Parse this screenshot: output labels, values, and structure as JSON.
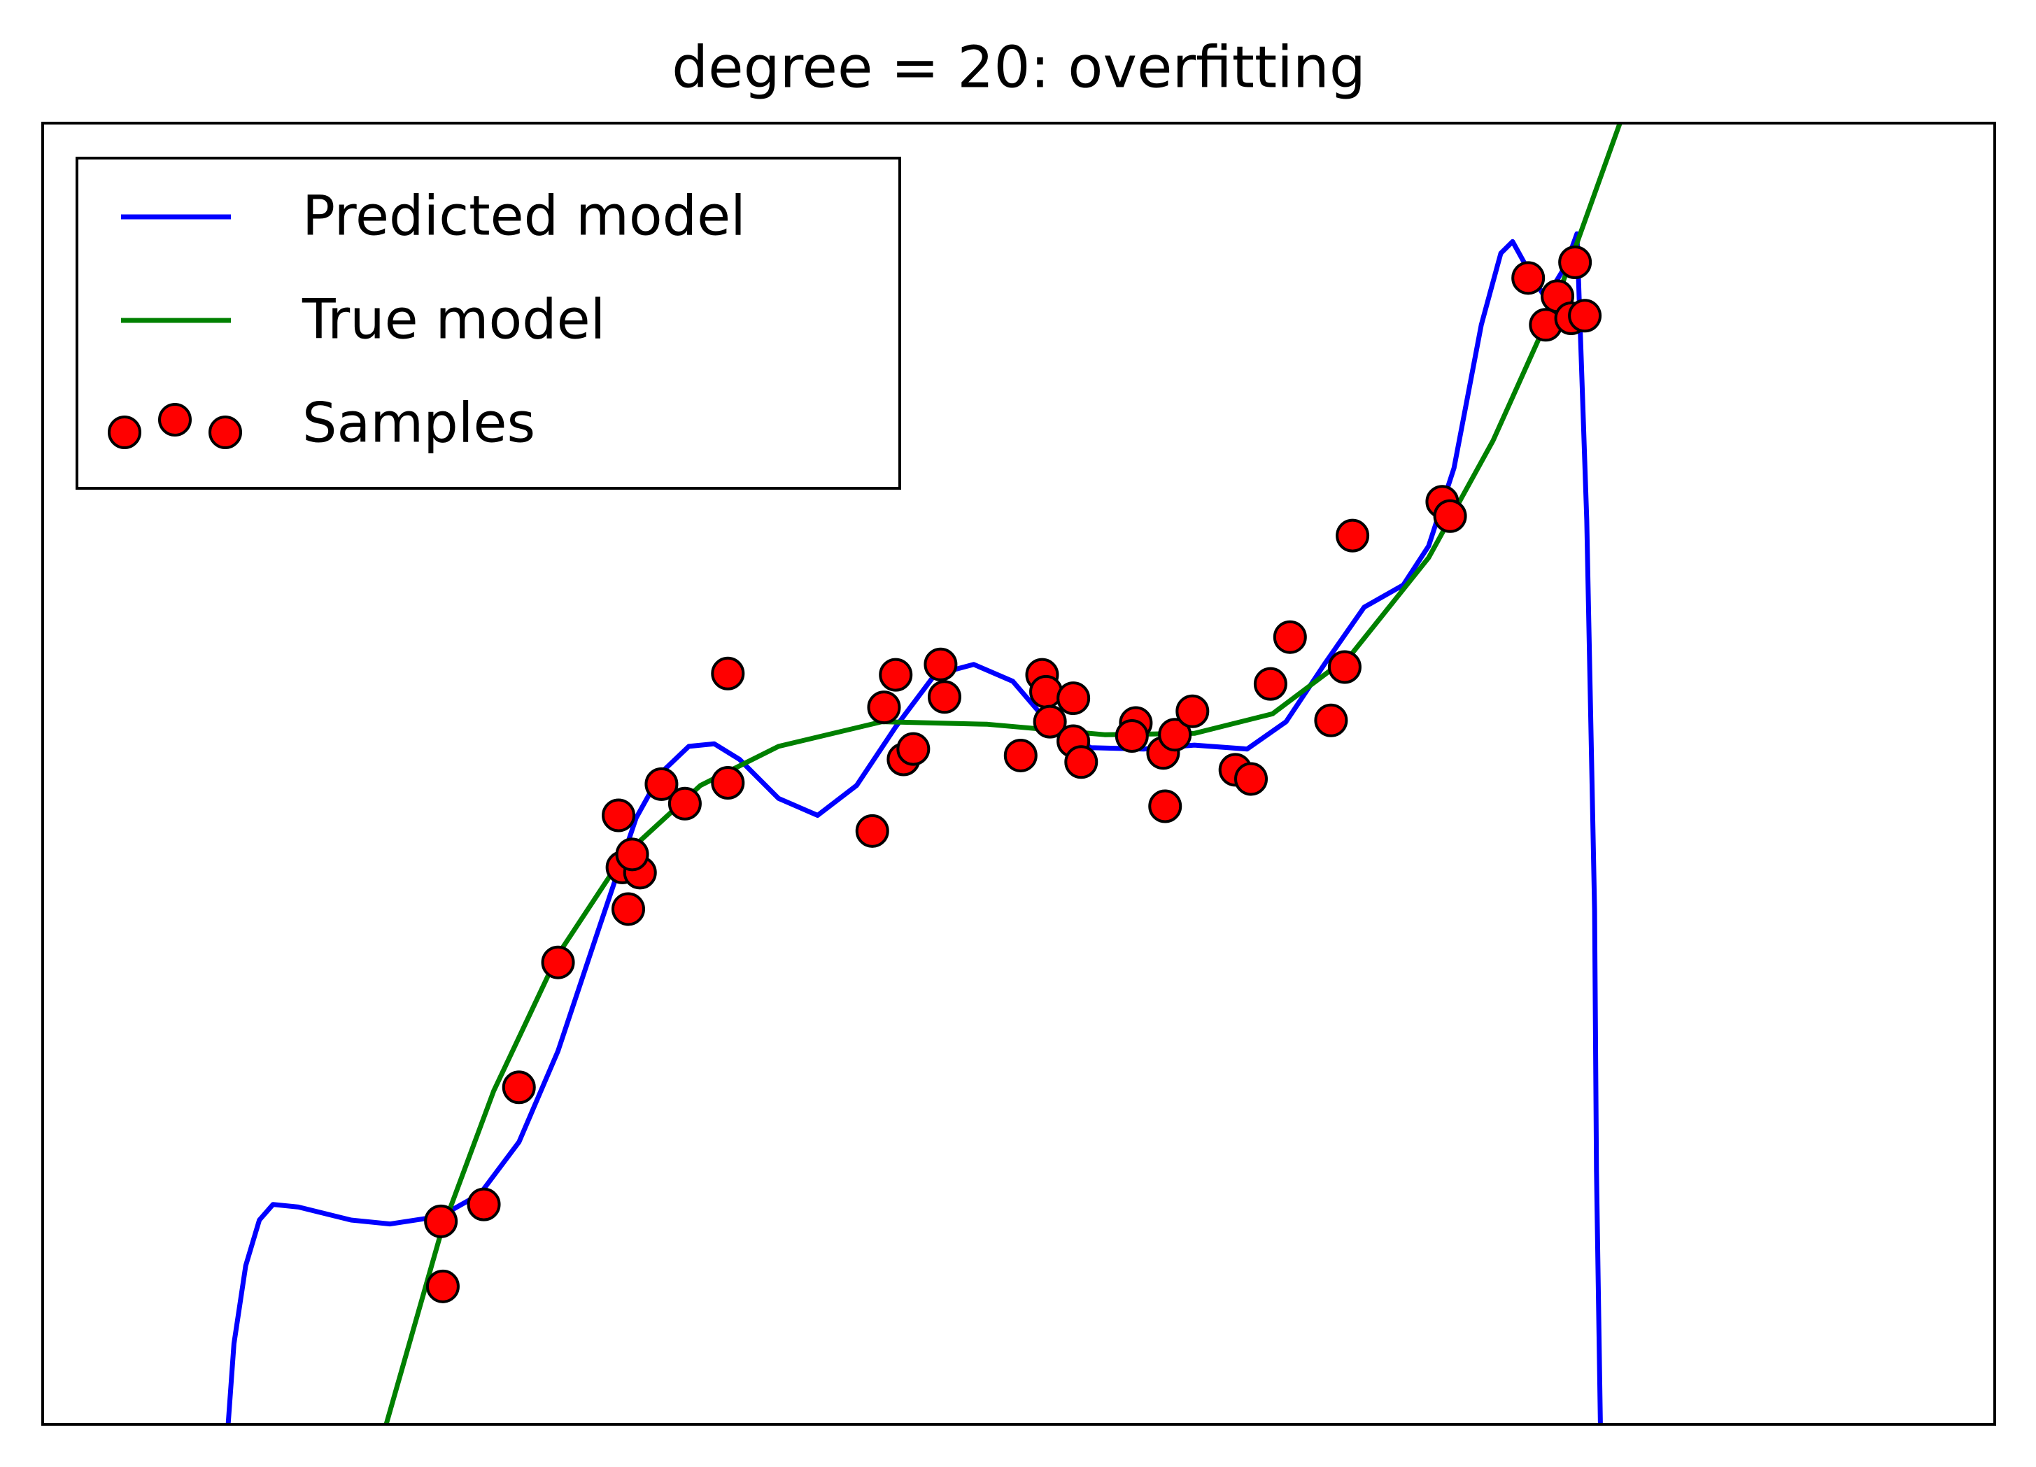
{
  "chart_data": {
    "type": "line",
    "title": "degree = 20: overfitting",
    "xlim": [
      0,
      1
    ],
    "ylim": [
      0,
      1
    ],
    "grid": false,
    "legend_loc": "upper left",
    "series": [
      {
        "name": "Predicted model",
        "color": "#0000ff",
        "style": "line",
        "x": [
          0.095,
          0.098,
          0.104,
          0.111,
          0.118,
          0.131,
          0.158,
          0.178,
          0.204,
          0.224,
          0.244,
          0.264,
          0.284,
          0.304,
          0.317,
          0.331,
          0.344,
          0.357,
          0.377,
          0.397,
          0.417,
          0.437,
          0.457,
          0.477,
          0.497,
          0.517,
          0.537,
          0.564,
          0.59,
          0.617,
          0.637,
          0.657,
          0.677,
          0.697,
          0.71,
          0.723,
          0.737,
          0.747,
          0.753,
          0.76,
          0.77,
          0.78,
          0.786,
          0.791,
          0.795,
          0.796,
          0.798
        ],
        "values": [
          0,
          0.062,
          0.122,
          0.157,
          0.169,
          0.167,
          0.157,
          0.154,
          0.16,
          0.177,
          0.217,
          0.287,
          0.377,
          0.466,
          0.501,
          0.521,
          0.523,
          0.511,
          0.481,
          0.468,
          0.491,
          0.536,
          0.576,
          0.584,
          0.571,
          0.536,
          0.52,
          0.519,
          0.522,
          0.519,
          0.54,
          0.585,
          0.628,
          0.645,
          0.675,
          0.735,
          0.845,
          0.9,
          0.909,
          0.89,
          0.865,
          0.89,
          0.915,
          0.695,
          0.395,
          0.195,
          0
        ]
      },
      {
        "name": "True model",
        "color": "#008000",
        "style": "line",
        "x": [
          0.176,
          0.204,
          0.231,
          0.264,
          0.297,
          0.337,
          0.377,
          0.43,
          0.484,
          0.544,
          0.59,
          0.63,
          0.67,
          0.71,
          0.743,
          0.776,
          0.808
        ],
        "values": [
          0,
          0.147,
          0.256,
          0.361,
          0.436,
          0.491,
          0.521,
          0.54,
          0.538,
          0.53,
          0.531,
          0.546,
          0.591,
          0.666,
          0.756,
          0.866,
          1.0
        ]
      },
      {
        "name": "Samples",
        "color": "#ff0000",
        "style": "scatter",
        "x": [
          0.205,
          0.204,
          0.226,
          0.244,
          0.264,
          0.295,
          0.297,
          0.306,
          0.3,
          0.302,
          0.317,
          0.329,
          0.351,
          0.351,
          0.425,
          0.431,
          0.437,
          0.441,
          0.446,
          0.46,
          0.462,
          0.501,
          0.512,
          0.514,
          0.516,
          0.528,
          0.528,
          0.532,
          0.56,
          0.558,
          0.574,
          0.575,
          0.58,
          0.589,
          0.611,
          0.619,
          0.629,
          0.639,
          0.66,
          0.667,
          0.671,
          0.717,
          0.721,
          0.761,
          0.77,
          0.776,
          0.783,
          0.785,
          0.79
        ],
        "values": [
          0.106,
          0.156,
          0.169,
          0.259,
          0.355,
          0.468,
          0.428,
          0.424,
          0.396,
          0.438,
          0.492,
          0.477,
          0.577,
          0.493,
          0.456,
          0.551,
          0.576,
          0.511,
          0.519,
          0.584,
          0.559,
          0.514,
          0.576,
          0.563,
          0.54,
          0.558,
          0.525,
          0.509,
          0.539,
          0.529,
          0.516,
          0.475,
          0.53,
          0.548,
          0.503,
          0.496,
          0.569,
          0.605,
          0.541,
          0.582,
          0.683,
          0.709,
          0.698,
          0.881,
          0.845,
          0.867,
          0.85,
          0.893,
          0.852
        ]
      }
    ]
  }
}
